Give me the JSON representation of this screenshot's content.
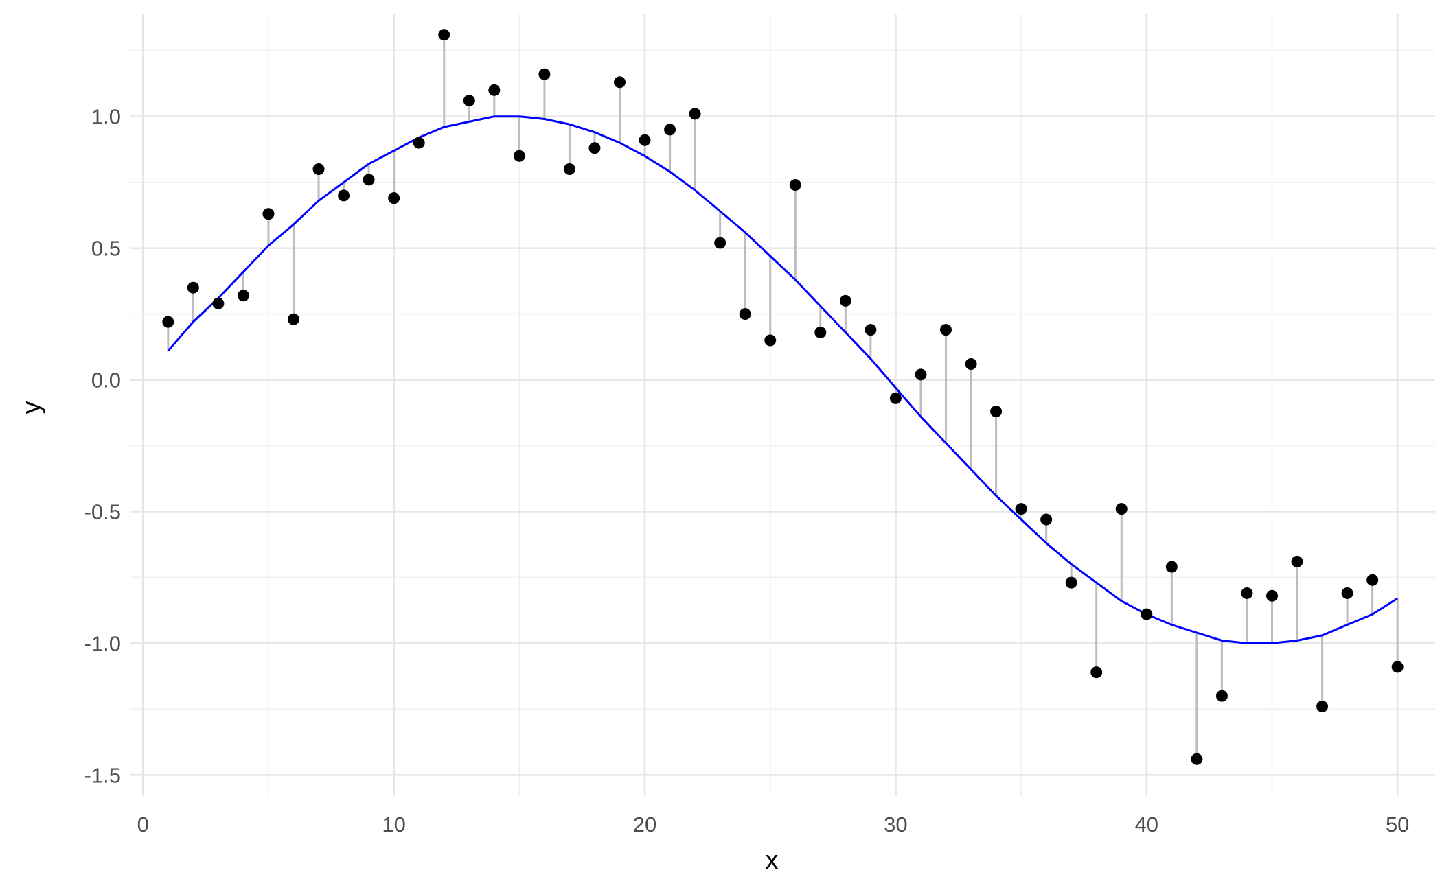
{
  "chart_data": {
    "type": "scatter",
    "xlabel": "x",
    "ylabel": "y",
    "xlim": [
      -0.5,
      51.5
    ],
    "ylim": [
      -1.58,
      1.39
    ],
    "x_ticks": [
      0,
      10,
      20,
      30,
      40,
      50
    ],
    "y_ticks": [
      -1.5,
      -1.0,
      -0.5,
      0.0,
      0.5,
      1.0
    ],
    "x_tick_labels": [
      "0",
      "10",
      "20",
      "30",
      "40",
      "50"
    ],
    "y_tick_labels": [
      "-1.5",
      "-1.0",
      "-0.5",
      "0.0",
      "0.5",
      "1.0"
    ],
    "grid": true,
    "legend": "none",
    "colors": {
      "points": "#000000",
      "fit_line": "#0000ff",
      "residual_segments": "#bdbdbd",
      "grid": "#e6e6e6"
    },
    "series": [
      {
        "kind": "points",
        "x": [
          1,
          2,
          3,
          4,
          5,
          6,
          7,
          8,
          9,
          10,
          11,
          12,
          13,
          14,
          15,
          16,
          17,
          18,
          19,
          20,
          21,
          22,
          23,
          24,
          25,
          26,
          27,
          28,
          29,
          30,
          31,
          32,
          33,
          34,
          35,
          36,
          37,
          38,
          39,
          40,
          41,
          42,
          43,
          44,
          45,
          46,
          47,
          48,
          49,
          50
        ],
        "y": [
          0.22,
          0.35,
          0.29,
          0.32,
          0.63,
          0.23,
          0.8,
          0.7,
          0.76,
          0.69,
          0.9,
          1.31,
          1.06,
          1.1,
          0.85,
          1.16,
          0.8,
          0.88,
          1.13,
          0.91,
          0.95,
          1.01,
          0.52,
          0.25,
          0.15,
          0.74,
          0.18,
          0.3,
          0.19,
          -0.07,
          0.02,
          0.19,
          0.06,
          -0.12,
          -0.49,
          -0.53,
          -0.77,
          -1.11,
          -0.49,
          -0.89,
          -0.71,
          -1.44,
          -1.2,
          -0.81,
          -0.82,
          -0.69,
          -1.24,
          -0.81,
          -0.76,
          -1.09
        ]
      },
      {
        "kind": "fitted-line",
        "x": [
          1,
          2,
          3,
          4,
          5,
          6,
          7,
          8,
          9,
          10,
          11,
          12,
          13,
          14,
          15,
          16,
          17,
          18,
          19,
          20,
          21,
          22,
          23,
          24,
          25,
          26,
          27,
          28,
          29,
          30,
          31,
          32,
          33,
          34,
          35,
          36,
          37,
          38,
          39,
          40,
          41,
          42,
          43,
          44,
          45,
          46,
          47,
          48,
          49,
          50
        ],
        "y": [
          0.11,
          0.22,
          0.31,
          0.41,
          0.51,
          0.59,
          0.68,
          0.75,
          0.82,
          0.87,
          0.92,
          0.96,
          0.98,
          1.0,
          1.0,
          0.99,
          0.97,
          0.94,
          0.9,
          0.85,
          0.79,
          0.72,
          0.64,
          0.56,
          0.47,
          0.38,
          0.28,
          0.18,
          0.08,
          -0.03,
          -0.14,
          -0.24,
          -0.34,
          -0.44,
          -0.53,
          -0.62,
          -0.7,
          -0.77,
          -0.84,
          -0.89,
          -0.93,
          -0.96,
          -0.99,
          -1.0,
          -1.0,
          -0.99,
          -0.97,
          -0.93,
          -0.89,
          -0.83
        ]
      }
    ]
  }
}
